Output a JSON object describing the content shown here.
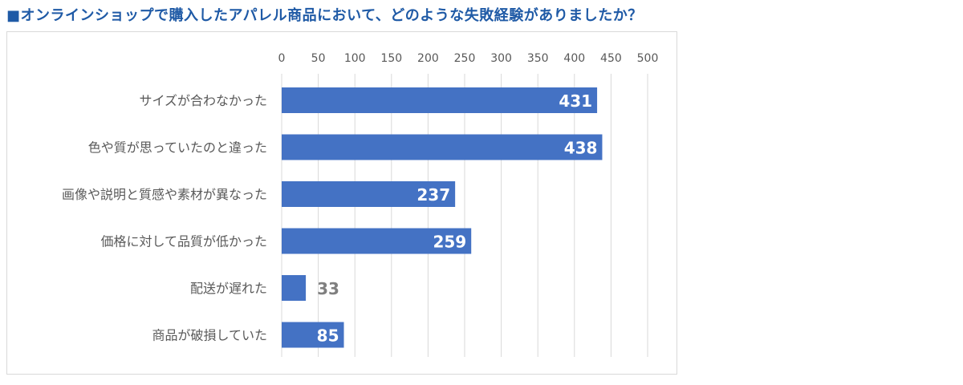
{
  "title": "■オンラインショップで購入したアパレル商品において、どのような失敗経験がありましたか？",
  "colors": {
    "bar": "#4472c4",
    "title": "#1f5aa6",
    "grid": "#d9d9d9",
    "axis_text": "#595959",
    "label_inside": "#ffffff",
    "label_outside": "#7f7f7f"
  },
  "chart_data": {
    "type": "bar",
    "orientation": "horizontal",
    "title": "",
    "xlabel": "",
    "ylabel": "",
    "categories": [
      "サイズが合わなかった",
      "色や質が思っていたのと違った",
      "画像や説明と質感や素材が異なった",
      "価格に対して品質が低かった",
      "配送が遅れた",
      "商品が破損していた"
    ],
    "values": [
      431,
      438,
      237,
      259,
      33,
      85
    ],
    "xlim": [
      0,
      500
    ],
    "ticks": [
      "0",
      "50",
      "100",
      "150",
      "200",
      "250",
      "300",
      "350",
      "400",
      "450",
      "500"
    ],
    "tick_values": [
      0,
      50,
      100,
      150,
      200,
      250,
      300,
      350,
      400,
      450,
      500
    ],
    "axis_position": "top",
    "grid": true,
    "data_labels": true
  }
}
